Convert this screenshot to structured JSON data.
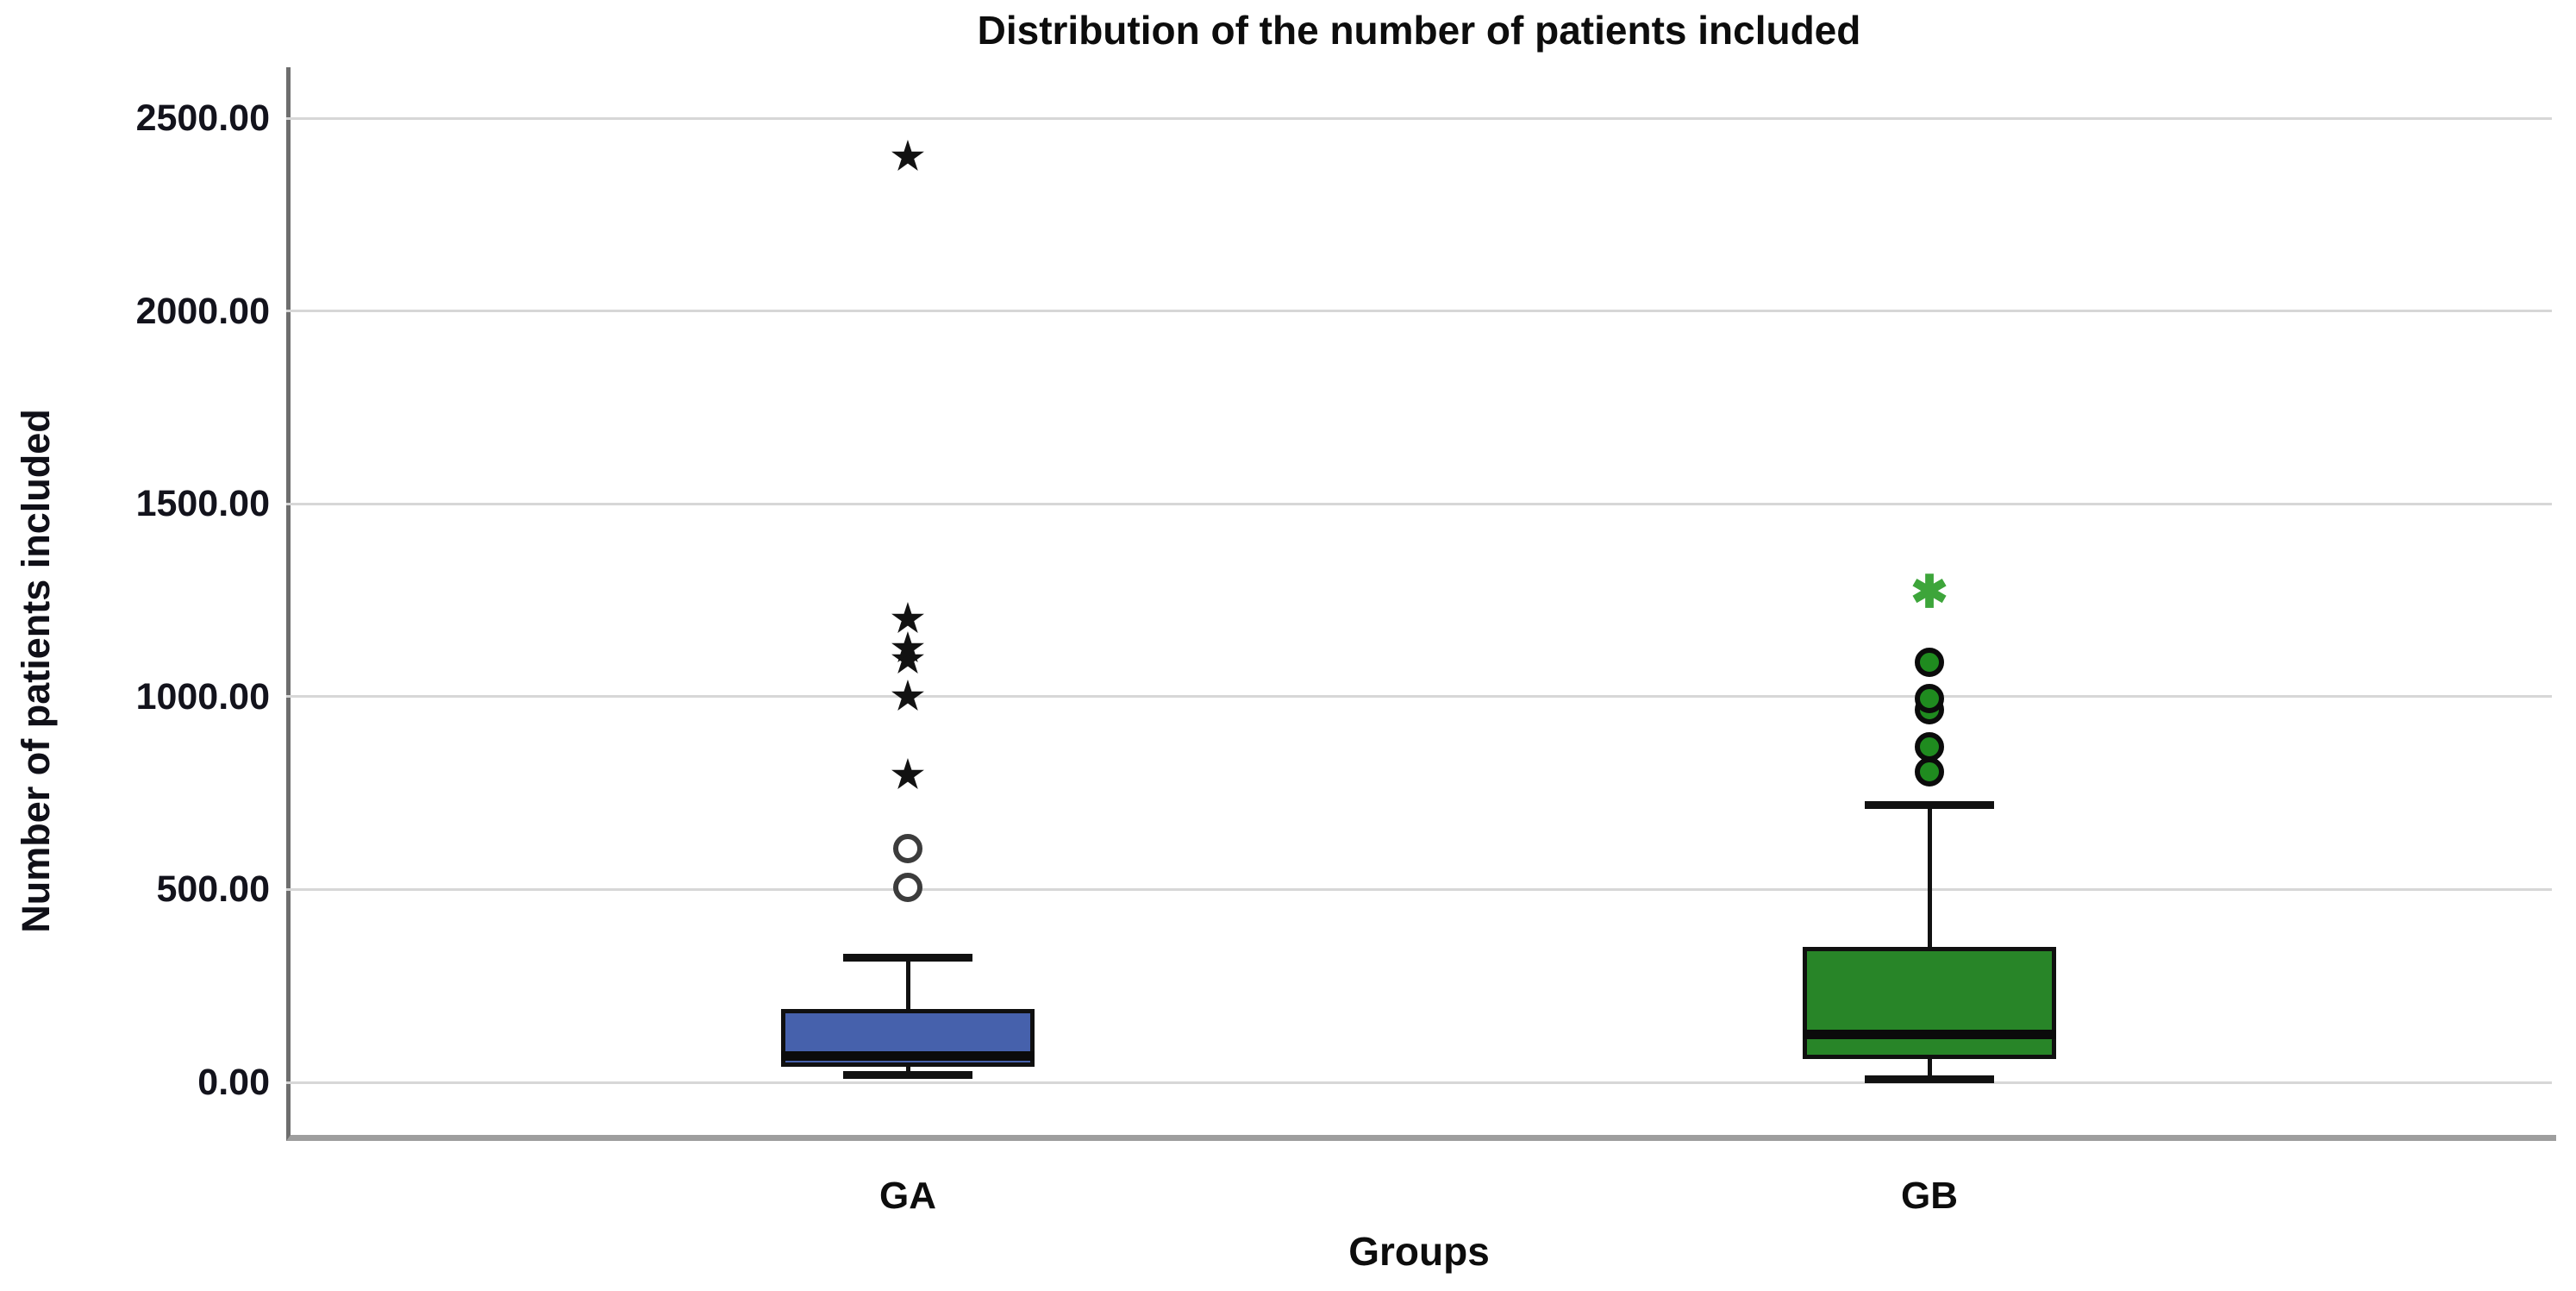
{
  "chart": {
    "title": "Distribution of the number of patients included",
    "y_label": "Number of patients included",
    "x_label": "Groups"
  },
  "chart_data": {
    "type": "boxplot",
    "title": "Distribution of the number of patients included",
    "xlabel": "Groups",
    "ylabel": "Number of patients included",
    "ylim": [
      -140,
      2650
    ],
    "grid": true,
    "legend": "none",
    "yticks": [
      {
        "value": 0,
        "label": "0.00"
      },
      {
        "value": 500,
        "label": "500.00"
      },
      {
        "value": 1000,
        "label": "1000.00"
      },
      {
        "value": 1500,
        "label": "1500.00"
      },
      {
        "value": 2000,
        "label": "2000.00"
      },
      {
        "value": 2500,
        "label": "2500.00"
      }
    ],
    "categories": [
      "GA",
      "GB"
    ],
    "series": [
      {
        "name": "GA",
        "box_color": "#4661ac",
        "border_color": "#101010",
        "whisker_low": 20,
        "q1": 40,
        "median": 70,
        "q3": 190,
        "whisker_high": 325,
        "mild_outliers": [
          505,
          605
        ],
        "extreme_outliers": [
          795,
          1000,
          1095,
          1125,
          1200,
          2400
        ],
        "mild_marker": "open-circle",
        "mild_marker_fill": "#ffffff",
        "mild_marker_border": "#3c3c3c",
        "extreme_marker": "star",
        "extreme_marker_glyph": "★",
        "extreme_marker_color": "#121212"
      },
      {
        "name": "GB",
        "box_color": "#288528",
        "border_color": "#101010",
        "whisker_low": 10,
        "q1": 60,
        "median": 125,
        "q3": 350,
        "whisker_high": 720,
        "mild_outliers": [
          805,
          870,
          965,
          995,
          1090
        ],
        "extreme_outliers": [
          1270
        ],
        "mild_marker": "filled-circle",
        "mild_marker_fill": "#1f8b1f",
        "mild_marker_border": "#0b0b0b",
        "extreme_marker": "asterisk",
        "extreme_marker_glyph": "✱",
        "extreme_marker_color": "#3da53a"
      }
    ]
  }
}
